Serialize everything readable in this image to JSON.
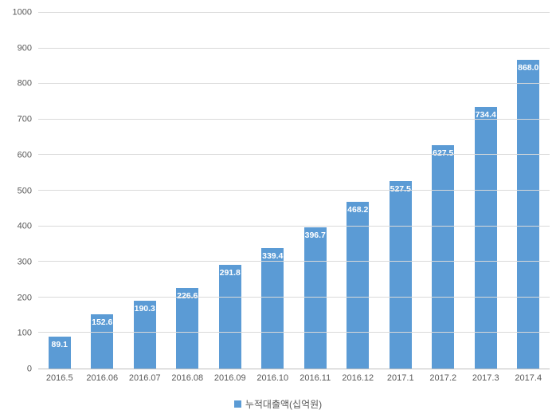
{
  "chart_data": {
    "type": "bar",
    "title": "",
    "categories": [
      "2016.5",
      "2016.06",
      "2016.07",
      "2016.08",
      "2016.09",
      "2016.10",
      "2016.11",
      "2016.12",
      "2017.1",
      "2017.2",
      "2017.3",
      "2017.4"
    ],
    "series": [
      {
        "name": "누적대출액(십억원)",
        "values": [
          89.1,
          152.6,
          190.3,
          226.6,
          291.8,
          339.4,
          396.7,
          468.2,
          527.5,
          627.5,
          734.4,
          868.0
        ]
      }
    ],
    "xlabel": "",
    "ylabel": "",
    "ylim": [
      0,
      1000
    ],
    "ytick_step": 100,
    "grid": "horizontal",
    "legend_position": "bottom",
    "data_labels": "inside-end",
    "data_label_decimals": 1,
    "bar_color": "#5b9bd5",
    "data_label_color": "#ffffff",
    "axis_text_color": "#595959",
    "gridline_color": "#d9d9d9",
    "axis_line_color": "#bfbfbf"
  },
  "legend": {
    "label": "누적대출액(십억원)"
  }
}
